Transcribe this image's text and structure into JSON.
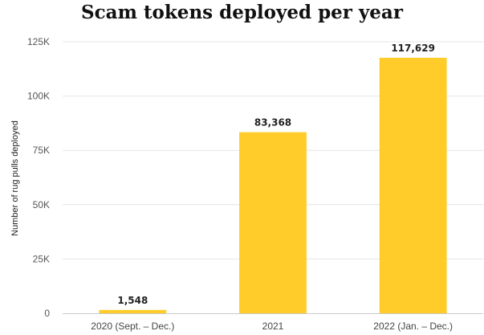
{
  "chart_data": {
    "type": "bar",
    "title": "Scam tokens deployed per year",
    "xlabel": "",
    "ylabel": "Number of rug pulls deployed",
    "categories": [
      "2020 (Sept. – Dec.)",
      "2021",
      "2022 (Jan. – Dec.)"
    ],
    "values": [
      1548,
      83368,
      117629
    ],
    "value_labels": [
      "1,548",
      "83,368",
      "117,629"
    ],
    "ylim": [
      0,
      125000
    ],
    "yticks": [
      0,
      25000,
      50000,
      75000,
      100000,
      125000
    ],
    "ytick_labels": [
      "0",
      "25K",
      "50K",
      "75K",
      "100K",
      "125K"
    ],
    "grid": true,
    "colors": {
      "bar": "#FFCC29",
      "grid": "#E6E6E6",
      "axis": "#CCCCCC"
    }
  }
}
